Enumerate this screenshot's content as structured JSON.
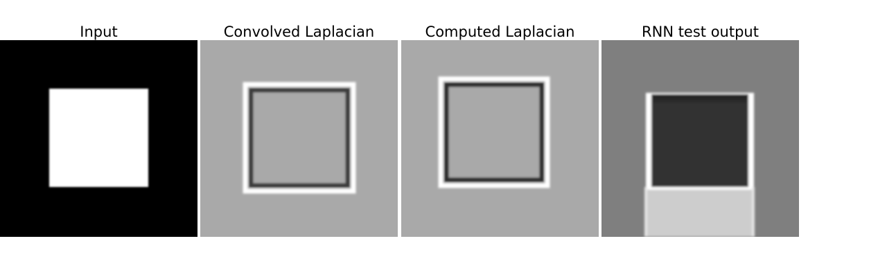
{
  "panels": [
    {
      "title": "Input",
      "background": "#000000",
      "foreground": "#ffffff"
    },
    {
      "title": "Convolved Laplacian",
      "background": "#a9a9a9",
      "edge_dark": "#3a3a3a",
      "edge_light": "#ffffff"
    },
    {
      "title": "Computed Laplacian",
      "background": "#a9a9a9",
      "edge_dark": "#2a2a2a",
      "edge_light": "#ffffff"
    },
    {
      "title": "RNN test output",
      "background": "#7f7f7f",
      "inner_dark": "#333333",
      "inner_light": "#cdcdcd",
      "edge_light": "#ffffff"
    }
  ]
}
